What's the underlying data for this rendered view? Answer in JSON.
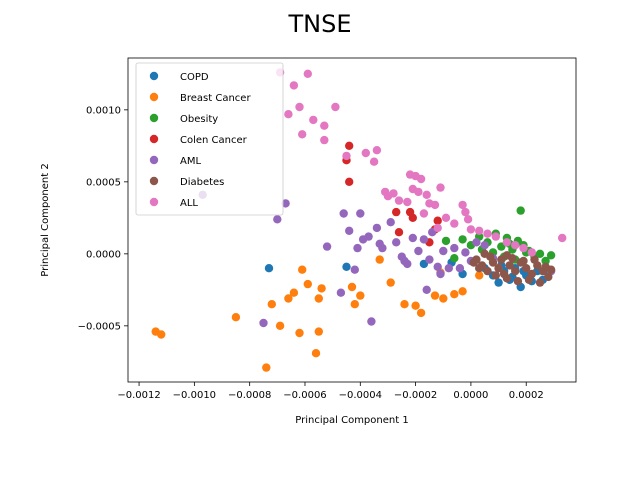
{
  "chart_data": {
    "type": "scatter",
    "title": "TNSE",
    "xlabel": "Principal Component 1",
    "ylabel": "Principal Component 2",
    "xlim": [
      -0.00124,
      0.00038
    ],
    "ylim": [
      -0.00089,
      0.00136
    ],
    "xticks": [
      -0.0012,
      -0.001,
      -0.0008,
      -0.0006,
      -0.0004,
      -0.0002,
      0.0,
      0.0002
    ],
    "xtick_labels": [
      "−0.0012",
      "−0.0010",
      "−0.0008",
      "−0.0006",
      "−0.0004",
      "−0.0002",
      "0.0000",
      "0.0002"
    ],
    "yticks": [
      -0.0005,
      0.0,
      0.0005,
      0.001
    ],
    "ytick_labels": [
      "−0.0005",
      "0.0000",
      "0.0005",
      "0.0010"
    ],
    "grid": false,
    "legend_position": "top-left",
    "series": [
      {
        "name": "COPD",
        "color": "#1f77b4",
        "points": [
          [
            -0.00073,
            -0.0001
          ],
          [
            -0.00045,
            -9e-05
          ],
          [
            -0.00017,
            -7e-05
          ],
          [
            -7e-05,
            -6e-05
          ],
          [
            -3e-05,
            -0.00014
          ],
          [
            5e-05,
            -0.0001
          ],
          [
            8e-05,
            -0.00015
          ],
          [
            0.0001,
            -0.0002
          ],
          [
            0.00012,
            -0.00012
          ],
          [
            0.00014,
            -0.00018
          ],
          [
            0.00016,
            -0.0001
          ],
          [
            0.00018,
            -0.00023
          ],
          [
            0.0002,
            -0.00015
          ],
          [
            0.00022,
            -0.00019
          ],
          [
            0.00024,
            -0.00012
          ],
          [
            0.00026,
            -0.00018
          ],
          [
            0.00028,
            -0.00014
          ],
          [
            0.00011,
            -8e-05
          ],
          [
            0.00019,
            -0.00012
          ],
          [
            0.00015,
            -0.00016
          ]
        ]
      },
      {
        "name": "Breast Cancer",
        "color": "#ff7f0e",
        "points": [
          [
            -0.00114,
            -0.00054
          ],
          [
            -0.00112,
            -0.00056
          ],
          [
            -0.00085,
            -0.00044
          ],
          [
            -0.00074,
            -0.00079
          ],
          [
            -0.00072,
            -0.00035
          ],
          [
            -0.00069,
            -0.0005
          ],
          [
            -0.00066,
            -0.00031
          ],
          [
            -0.00064,
            -0.00027
          ],
          [
            -0.00062,
            -0.00055
          ],
          [
            -0.00061,
            -0.00011
          ],
          [
            -0.00059,
            -0.00021
          ],
          [
            -0.00056,
            -0.00069
          ],
          [
            -0.00055,
            -0.00031
          ],
          [
            -0.00055,
            -0.00054
          ],
          [
            -0.00054,
            -0.00024
          ],
          [
            -0.00043,
            -0.00023
          ],
          [
            -0.00042,
            -0.00035
          ],
          [
            -0.0004,
            -0.00029
          ],
          [
            -0.00033,
            -4e-05
          ],
          [
            -0.00029,
            -0.0002
          ],
          [
            -0.00024,
            -0.00035
          ],
          [
            -0.0002,
            -0.00036
          ],
          [
            -0.00018,
            -0.00041
          ],
          [
            -0.00013,
            -0.00029
          ],
          [
            -0.00011,
            -0.00013
          ],
          [
            -3e-05,
            -0.00026
          ],
          [
            3e-05,
            -0.00015
          ],
          [
            -0.0001,
            -0.00031
          ],
          [
            0.0001,
            -0.0001
          ],
          [
            -6e-05,
            -0.00028
          ]
        ]
      },
      {
        "name": "Obesity",
        "color": "#2ca02c",
        "points": [
          [
            0.00018,
            0.0003
          ],
          [
            -9e-05,
            9e-05
          ],
          [
            -6e-05,
            -3e-05
          ],
          [
            -3e-05,
            0.0001
          ],
          [
            0.0,
            6e-05
          ],
          [
            3e-05,
            0.00012
          ],
          [
            6e-05,
            8e-05
          ],
          [
            9e-05,
            0.00014
          ],
          [
            0.00011,
            5e-05
          ],
          [
            0.00013,
            0.00011
          ],
          [
            0.00015,
            3e-05
          ],
          [
            0.00017,
            9e-05
          ],
          [
            0.00019,
            6e-05
          ],
          [
            0.00021,
            2e-05
          ],
          [
            0.00023,
            -2e-05
          ],
          [
            0.00025,
            0.0
          ],
          [
            0.00027,
            -5e-05
          ],
          [
            0.00029,
            -1e-05
          ],
          [
            0.0002,
            1e-05
          ],
          [
            0.00014,
            7e-05
          ],
          [
            8e-05,
            1e-05
          ],
          [
            4e-05,
            3e-05
          ],
          [
            0.00016,
            -4e-05
          ],
          [
            0.00012,
            -2e-05
          ]
        ]
      },
      {
        "name": "Colen Cancer",
        "color": "#d62728",
        "points": [
          [
            -0.00044,
            0.00075
          ],
          [
            -0.00045,
            0.00065
          ],
          [
            -0.00044,
            0.0005
          ],
          [
            -0.00027,
            0.00029
          ],
          [
            -0.00026,
            0.00015
          ],
          [
            -0.00022,
            0.00029
          ],
          [
            -0.00021,
            0.00025
          ],
          [
            -0.00015,
            8e-05
          ],
          [
            -0.00013,
            0.00017
          ],
          [
            -0.00012,
            0.00023
          ]
        ]
      },
      {
        "name": "AML",
        "color": "#9467bd",
        "points": [
          [
            -0.00097,
            0.00041
          ],
          [
            -0.0007,
            0.00024
          ],
          [
            -0.00075,
            -0.00048
          ],
          [
            -0.00067,
            0.00035
          ],
          [
            -0.00052,
            5e-05
          ],
          [
            -0.00046,
            0.00028
          ],
          [
            -0.00044,
            0.00016
          ],
          [
            -0.00041,
            4e-05
          ],
          [
            -0.0004,
            0.00028
          ],
          [
            -0.00039,
            0.0001
          ],
          [
            -0.00037,
            0.00012
          ],
          [
            -0.00034,
            0.00018
          ],
          [
            -0.00033,
            7e-05
          ],
          [
            -0.00032,
            4e-05
          ],
          [
            -0.00029,
            0.00022
          ],
          [
            -0.00027,
            8e-05
          ],
          [
            -0.00025,
            -2e-05
          ],
          [
            -0.00023,
            -7e-05
          ],
          [
            -0.00021,
            0.00011
          ],
          [
            -0.00019,
            2e-05
          ],
          [
            -0.00017,
            0.0001
          ],
          [
            -0.00015,
            -4e-05
          ],
          [
            -0.00014,
            0.00015
          ],
          [
            -0.00012,
            -9e-05
          ],
          [
            -0.0001,
            2e-05
          ],
          [
            -8e-05,
            -0.0001
          ],
          [
            -6e-05,
            4e-05
          ],
          [
            -4e-05,
            -0.0001
          ],
          [
            -2e-05,
            1e-05
          ],
          [
            0.0,
            -5e-05
          ],
          [
            2e-05,
            8e-05
          ],
          [
            5e-05,
            6e-05
          ],
          [
            8e-05,
            -3e-05
          ],
          [
            -0.00047,
            -0.00027
          ],
          [
            -0.00036,
            -0.00047
          ],
          [
            -0.00042,
            -0.00011
          ],
          [
            0.00029,
            -0.00012
          ],
          [
            -0.00024,
            -5e-05
          ],
          [
            -0.00016,
            -0.00025
          ],
          [
            -0.00011,
            -0.00014
          ]
        ]
      },
      {
        "name": "Diabetes",
        "color": "#8c564b",
        "points": [
          [
            2e-05,
            -4e-05
          ],
          [
            4e-05,
            -8e-05
          ],
          [
            6e-05,
            -0.00012
          ],
          [
            8e-05,
            -6e-05
          ],
          [
            0.0001,
            -0.0001
          ],
          [
            0.00012,
            -0.00014
          ],
          [
            0.00014,
            -8e-05
          ],
          [
            0.00016,
            -0.00012
          ],
          [
            0.00018,
            -6e-05
          ],
          [
            0.0002,
            -0.0001
          ],
          [
            0.00022,
            -0.00014
          ],
          [
            0.00024,
            -8e-05
          ],
          [
            0.00026,
            -0.00012
          ],
          [
            0.00028,
            -0.00016
          ],
          [
            7e-05,
            -2e-05
          ],
          [
            0.00011,
            -4e-05
          ],
          [
            0.00015,
            -3e-05
          ],
          [
            0.00019,
            -5e-05
          ],
          [
            0.00023,
            -4e-05
          ],
          [
            0.00027,
            -9e-05
          ],
          [
            9e-05,
            -0.00015
          ],
          [
            0.00013,
            -0.00017
          ],
          [
            0.00017,
            -0.00019
          ],
          [
            0.00021,
            -0.00018
          ],
          [
            0.00025,
            -0.0002
          ],
          [
            3e-05,
            -0.0001
          ],
          [
            1e-05,
            -6e-05
          ],
          [
            5e-05,
            0.0
          ],
          [
            0.00013,
            -1e-05
          ],
          [
            0.00029,
            -0.00011
          ]
        ]
      },
      {
        "name": "ALL",
        "color": "#e377c2",
        "points": [
          [
            -0.00069,
            0.00126
          ],
          [
            -0.00059,
            0.00125
          ],
          [
            -0.00064,
            0.00117
          ],
          [
            -0.00062,
            0.00102
          ],
          [
            -0.00066,
            0.00097
          ],
          [
            -0.00049,
            0.00102
          ],
          [
            -0.00057,
            0.00093
          ],
          [
            -0.00053,
            0.00089
          ],
          [
            -0.00061,
            0.00083
          ],
          [
            -0.00053,
            0.00079
          ],
          [
            -0.00045,
            0.00068
          ],
          [
            -0.00038,
            0.0007
          ],
          [
            -0.00034,
            0.00072
          ],
          [
            -0.00035,
            0.00064
          ],
          [
            -0.00031,
            0.00043
          ],
          [
            -0.0003,
            0.0004
          ],
          [
            -0.00028,
            0.00042
          ],
          [
            -0.00026,
            0.00037
          ],
          [
            -0.00022,
            0.00055
          ],
          [
            -0.0002,
            0.00054
          ],
          [
            -0.00018,
            0.00052
          ],
          [
            -0.00021,
            0.00045
          ],
          [
            -0.00019,
            0.00043
          ],
          [
            -0.00016,
            0.00041
          ],
          [
            -0.00015,
            0.00035
          ],
          [
            -0.00013,
            0.00034
          ],
          [
            -0.00011,
            0.00046
          ],
          [
            -9e-05,
            0.00025
          ],
          [
            -6e-05,
            0.00021
          ],
          [
            -3e-05,
            0.00034
          ],
          [
            -2e-05,
            0.00029
          ],
          [
            -1e-05,
            0.00024
          ],
          [
            0.0,
            0.00017
          ],
          [
            3e-05,
            0.00016
          ],
          [
            6e-05,
            0.00014
          ],
          [
            9e-05,
            0.00012
          ],
          [
            0.00013,
            8e-05
          ],
          [
            0.00016,
            6e-05
          ],
          [
            0.00019,
            4e-05
          ],
          [
            0.00022,
            1e-05
          ],
          [
            0.00033,
            0.00011
          ],
          [
            -0.00023,
            0.00036
          ],
          [
            -0.00017,
            0.00028
          ],
          [
            -0.00012,
            0.00018
          ]
        ]
      }
    ]
  }
}
